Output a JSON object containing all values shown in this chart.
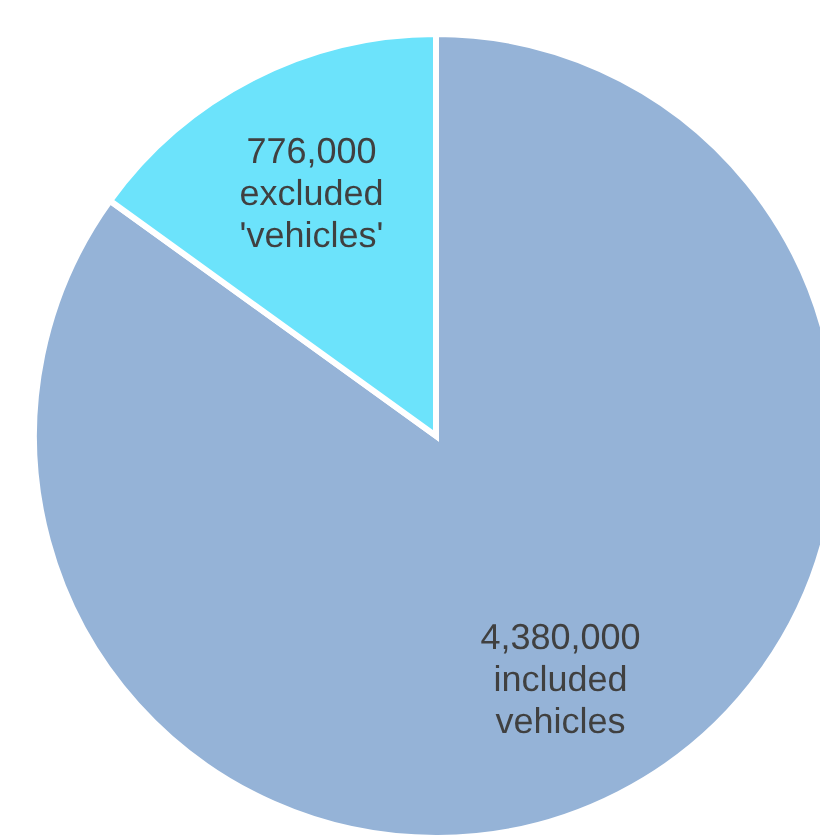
{
  "chart_data": {
    "type": "pie",
    "categories": [
      "included vehicles",
      "excluded 'vehicles'"
    ],
    "values": [
      4380000,
      776000
    ],
    "value_labels": [
      "4,380,000",
      "776,000"
    ],
    "colors": [
      "#95b3d7",
      "#6ce3fb"
    ]
  }
}
